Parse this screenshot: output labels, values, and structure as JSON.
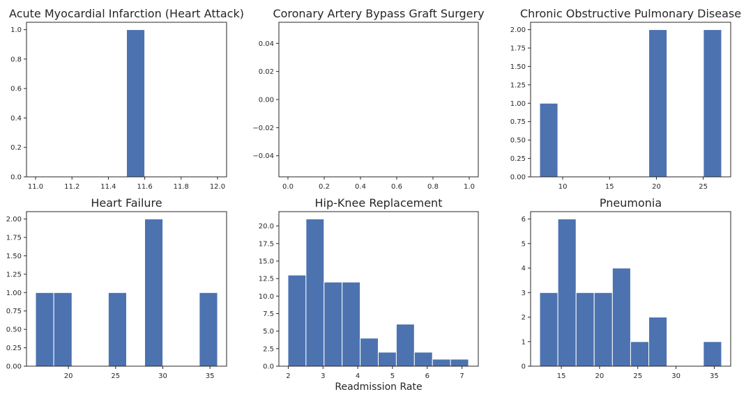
{
  "chart_data": [
    {
      "type": "bar",
      "title": "Acute Myocardial Infarction (Heart Attack)",
      "xlabel": "",
      "xlim": [
        10.95,
        12.05
      ],
      "ylim": [
        0,
        1.05
      ],
      "xticks": [
        11.0,
        11.2,
        11.4,
        11.6,
        11.8,
        12.0
      ],
      "xtick_labels": [
        "11.0",
        "11.2",
        "11.4",
        "11.6",
        "11.8",
        "12.0"
      ],
      "yticks": [
        0,
        0.2,
        0.4,
        0.6,
        0.8,
        1.0
      ],
      "ytick_labels": [
        "0.0",
        "0.2",
        "0.4",
        "0.6",
        "0.8",
        "1.0"
      ],
      "bins": [
        {
          "x0": 11.5,
          "x1": 11.6,
          "count": 1
        }
      ]
    },
    {
      "type": "bar",
      "title": "Coronary Artery Bypass Graft Surgery",
      "xlabel": "",
      "xlim": [
        -0.05,
        1.05
      ],
      "ylim": [
        -0.055,
        0.055
      ],
      "xticks": [
        0.0,
        0.2,
        0.4,
        0.6,
        0.8,
        1.0
      ],
      "xtick_labels": [
        "0.0",
        "0.2",
        "0.4",
        "0.6",
        "0.8",
        "1.0"
      ],
      "yticks": [
        -0.04,
        -0.02,
        0.0,
        0.02,
        0.04
      ],
      "ytick_labels": [
        "−0.04",
        "−0.02",
        "0.00",
        "0.02",
        "0.04"
      ],
      "bins": []
    },
    {
      "type": "bar",
      "title": "Chronic Obstructive Pulmonary Disease",
      "xlabel": "",
      "xlim": [
        6.57,
        27.93
      ],
      "ylim": [
        0,
        2.1
      ],
      "xticks": [
        10,
        15,
        20,
        25
      ],
      "xtick_labels": [
        "10",
        "15",
        "20",
        "25"
      ],
      "yticks": [
        0,
        0.25,
        0.5,
        0.75,
        1.0,
        1.25,
        1.5,
        1.75,
        2.0
      ],
      "ytick_labels": [
        "0.00",
        "0.25",
        "0.50",
        "0.75",
        "1.00",
        "1.25",
        "1.50",
        "1.75",
        "2.00"
      ],
      "bins": [
        {
          "x0": 7.54,
          "x1": 9.48,
          "count": 1
        },
        {
          "x0": 19.19,
          "x1": 21.13,
          "count": 2
        },
        {
          "x0": 25.02,
          "x1": 26.96,
          "count": 2
        }
      ]
    },
    {
      "type": "bar",
      "title": "Heart Failure",
      "xlabel": "",
      "xlim": [
        15.56,
        36.76
      ],
      "ylim": [
        0,
        2.1
      ],
      "xticks": [
        20,
        25,
        30,
        35
      ],
      "xtick_labels": [
        "20",
        "25",
        "30",
        "35"
      ],
      "yticks": [
        0,
        0.25,
        0.5,
        0.75,
        1.0,
        1.25,
        1.5,
        1.75,
        2.0
      ],
      "ytick_labels": [
        "0.00",
        "0.25",
        "0.50",
        "0.75",
        "1.00",
        "1.25",
        "1.50",
        "1.75",
        "2.00"
      ],
      "bins": [
        {
          "x0": 16.52,
          "x1": 18.45,
          "count": 1
        },
        {
          "x0": 18.45,
          "x1": 20.38,
          "count": 1
        },
        {
          "x0": 24.23,
          "x1": 26.16,
          "count": 1
        },
        {
          "x0": 28.08,
          "x1": 30.01,
          "count": 2
        },
        {
          "x0": 33.87,
          "x1": 35.8,
          "count": 1
        }
      ]
    },
    {
      "type": "bar",
      "title": "Hip-Knee Replacement",
      "xlabel": "Readmission Rate",
      "xlim": [
        1.73,
        7.47
      ],
      "ylim": [
        0,
        22.05
      ],
      "xticks": [
        2,
        3,
        4,
        5,
        6,
        7
      ],
      "xtick_labels": [
        "2",
        "3",
        "4",
        "5",
        "6",
        "7"
      ],
      "yticks": [
        0,
        2.5,
        5.0,
        7.5,
        10.0,
        12.5,
        15.0,
        17.5,
        20.0
      ],
      "ytick_labels": [
        "0.0",
        "2.5",
        "5.0",
        "7.5",
        "10.0",
        "12.5",
        "15.0",
        "17.5",
        "20.0"
      ],
      "bins": [
        {
          "x0": 1.99,
          "x1": 2.51,
          "count": 13
        },
        {
          "x0": 2.51,
          "x1": 3.03,
          "count": 21
        },
        {
          "x0": 3.03,
          "x1": 3.55,
          "count": 12
        },
        {
          "x0": 3.55,
          "x1": 4.07,
          "count": 12
        },
        {
          "x0": 4.07,
          "x1": 4.59,
          "count": 4
        },
        {
          "x0": 4.59,
          "x1": 5.11,
          "count": 2
        },
        {
          "x0": 5.11,
          "x1": 5.63,
          "count": 6
        },
        {
          "x0": 5.63,
          "x1": 6.15,
          "count": 2
        },
        {
          "x0": 6.15,
          "x1": 6.67,
          "count": 1
        },
        {
          "x0": 6.67,
          "x1": 7.19,
          "count": 1
        }
      ]
    },
    {
      "type": "bar",
      "title": "Pneumonia",
      "xlabel": "",
      "xlim": [
        10.98,
        37.15
      ],
      "ylim": [
        0,
        6.3
      ],
      "xticks": [
        15,
        20,
        25,
        30,
        35
      ],
      "xtick_labels": [
        "15",
        "20",
        "25",
        "30",
        "35"
      ],
      "yticks": [
        0,
        1,
        2,
        3,
        4,
        5,
        6
      ],
      "ytick_labels": [
        "0",
        "1",
        "2",
        "3",
        "4",
        "5",
        "6"
      ],
      "bins": [
        {
          "x0": 12.17,
          "x1": 14.55,
          "count": 3
        },
        {
          "x0": 14.55,
          "x1": 16.93,
          "count": 6
        },
        {
          "x0": 16.93,
          "x1": 19.3,
          "count": 3
        },
        {
          "x0": 19.3,
          "x1": 21.68,
          "count": 3
        },
        {
          "x0": 21.68,
          "x1": 24.06,
          "count": 4
        },
        {
          "x0": 24.06,
          "x1": 26.44,
          "count": 1
        },
        {
          "x0": 26.44,
          "x1": 28.82,
          "count": 2
        },
        {
          "x0": 33.58,
          "x1": 35.96,
          "count": 1
        }
      ]
    }
  ]
}
